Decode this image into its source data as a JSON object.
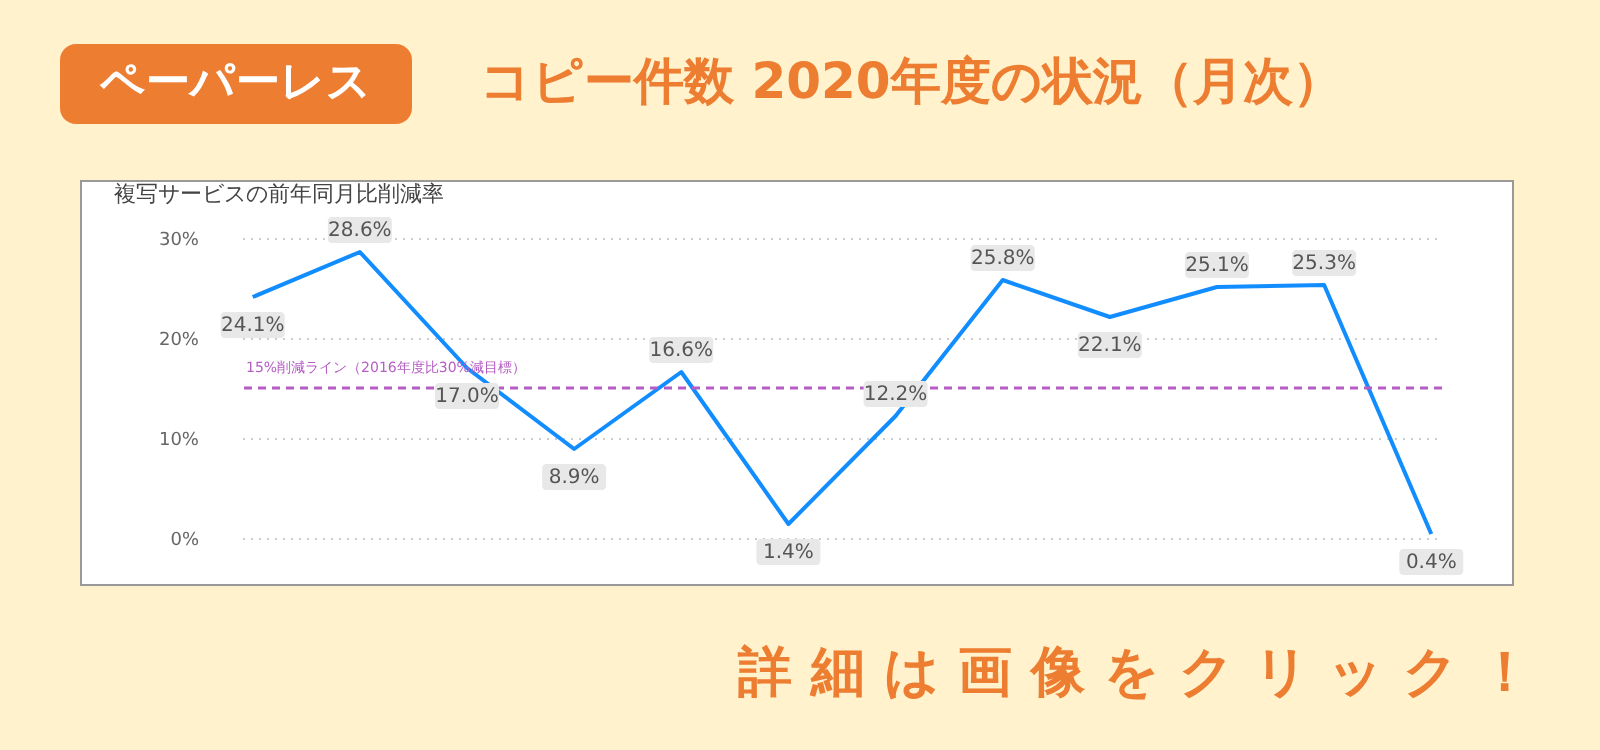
{
  "chart_data": {
    "type": "line",
    "title": "複写サービスの前年同月比削減率",
    "annotations": [
      "ペーパーレス",
      "コピー件数  2020年度の状況（月次）",
      "詳 細 は 画 像 を ク リ ッ ク ！"
    ],
    "categories": [
      null,
      null,
      null,
      null,
      null,
      null,
      null,
      null,
      null,
      null,
      null,
      null
    ],
    "series": [
      {
        "color": "#118dff",
        "values": [
          24.1,
          28.6,
          17.0,
          8.9,
          16.6,
          1.4,
          12.2,
          25.8,
          22.1,
          25.1,
          25.3,
          0.4
        ],
        "value_labels": [
          "24.1%",
          "28.6%",
          "17.0%",
          "8.9%",
          "16.6%",
          "1.4%",
          "12.2%",
          "25.8%",
          "22.1%",
          "25.1%",
          "25.3%",
          "0.4%"
        ]
      }
    ],
    "ylim": [
      0,
      30
    ],
    "yticks": [
      {
        "value": 0,
        "label": "0%"
      },
      {
        "value": 10,
        "label": "10%"
      },
      {
        "value": 20,
        "label": "20%"
      },
      {
        "value": 30,
        "label": "30%"
      }
    ],
    "grid": "y",
    "marker": "none",
    "line_style": "solid",
    "ref_lines": [
      {
        "axis": "y",
        "value": 15,
        "label": "15%削減ライン（2016年度比30%減目標）",
        "color": "#b55dc4",
        "line_style": "dashed"
      }
    ]
  }
}
